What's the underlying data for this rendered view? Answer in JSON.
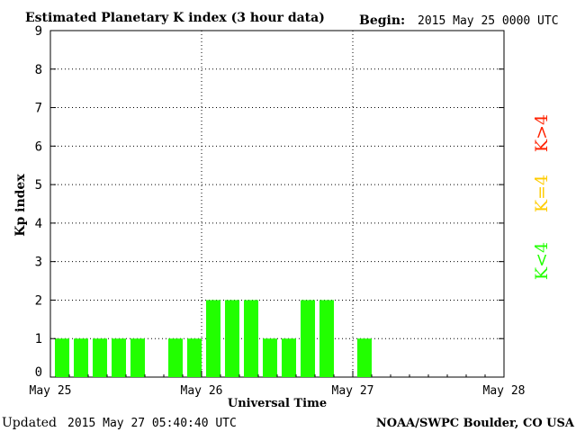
{
  "chart_data": {
    "type": "bar",
    "title": "Estimated Planetary K index (3 hour data)",
    "begin_label": "Begin:",
    "begin_value": "2015 May 25 0000 UTC",
    "xlabel": "Universal Time",
    "ylabel": "Kp index",
    "ylim": [
      0,
      9
    ],
    "yticks": [
      "0",
      "1",
      "2",
      "3",
      "4",
      "5",
      "6",
      "7",
      "8",
      "9"
    ],
    "xlim_days": [
      0,
      3
    ],
    "xticks": [
      "May 25",
      "May 26",
      "May 27",
      "May 28"
    ],
    "grid": true,
    "slots_per_day": 8,
    "values": [
      1,
      1,
      1,
      1,
      1,
      null,
      1,
      1,
      2,
      2,
      2,
      1,
      1,
      2,
      2,
      null,
      1
    ],
    "colors": {
      "below_4": "#22ff00",
      "equal_4": "#ffcc00",
      "above_4": "#ff2200"
    },
    "legend": [
      {
        "label": "K<4",
        "color": "#22ff00"
      },
      {
        "label": "K=4",
        "color": "#ffcc00"
      },
      {
        "label": "K>4",
        "color": "#ff2200"
      }
    ]
  },
  "footer": {
    "updated_label": "Updated",
    "updated_value": "2015 May 27 05:40:40 UTC",
    "credit": "NOAA/SWPC Boulder, CO USA"
  }
}
